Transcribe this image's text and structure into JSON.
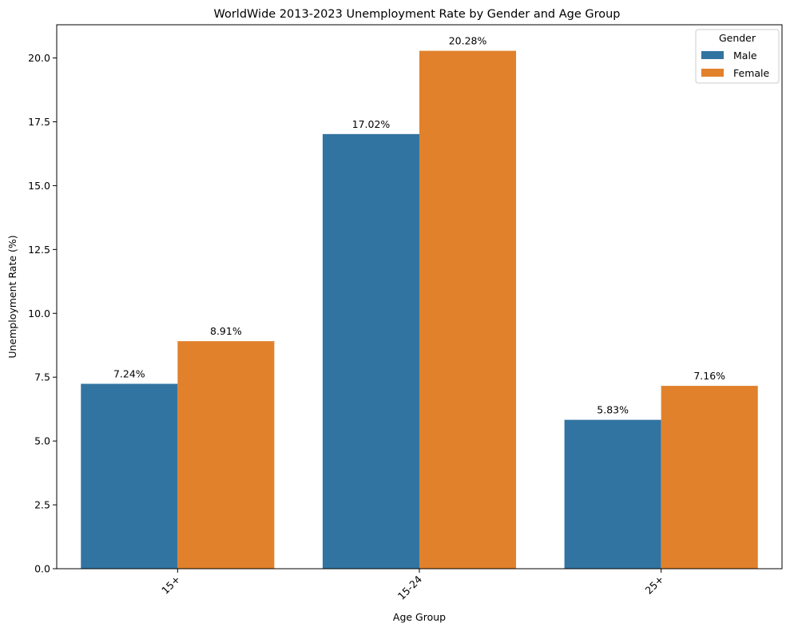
{
  "chart_data": {
    "type": "bar",
    "title": "WorldWide 2013-2023 Unemployment Rate by Gender and Age Group",
    "xlabel": "Age Group",
    "ylabel": "Unemployment Rate (%)",
    "categories": [
      "15+",
      "15-24",
      "25+"
    ],
    "series": [
      {
        "name": "Male",
        "color": "#3274a1",
        "values": [
          7.24,
          17.02,
          5.83
        ]
      },
      {
        "name": "Female",
        "color": "#e1812c",
        "values": [
          8.91,
          20.28,
          7.16
        ]
      }
    ],
    "data_labels": [
      [
        "7.24%",
        "17.02%",
        "5.83%"
      ],
      [
        "8.91%",
        "20.28%",
        "7.16%"
      ]
    ],
    "ylim": [
      0,
      21.3
    ],
    "yticks": [
      0.0,
      2.5,
      5.0,
      7.5,
      10.0,
      12.5,
      15.0,
      17.5,
      20.0
    ],
    "ytick_labels": [
      "0.0",
      "2.5",
      "5.0",
      "7.5",
      "10.0",
      "12.5",
      "15.0",
      "17.5",
      "20.0"
    ],
    "xtick_rotation": 45,
    "grid": false,
    "legend": {
      "title": "Gender",
      "position": "top-right"
    }
  }
}
